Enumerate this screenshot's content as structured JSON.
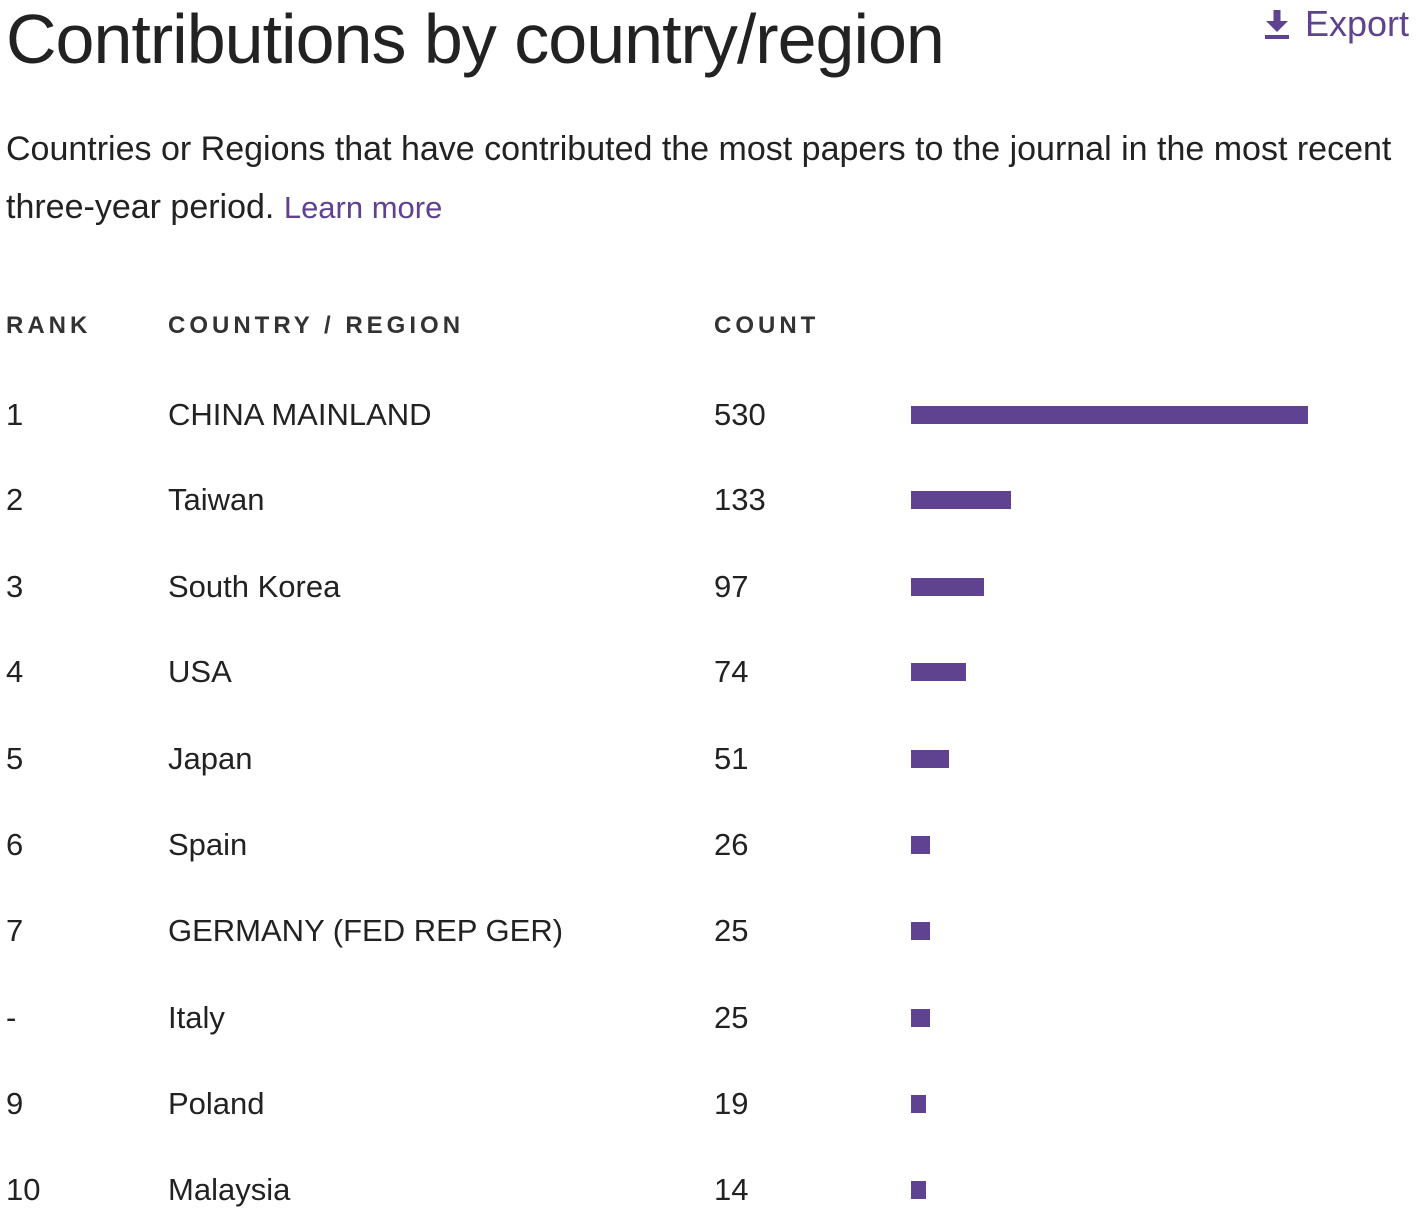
{
  "header": {
    "title": "Contributions by country/region",
    "export_label": "Export",
    "export_icon": "download-icon"
  },
  "description": {
    "text": "Countries or Regions that have contributed the most papers to the journal in the most recent three-year period.",
    "learn_more": "Learn more"
  },
  "table": {
    "columns": {
      "rank": "RANK",
      "country": "COUNTRY / REGION",
      "count": "COUNT"
    },
    "max_count": 530,
    "bar_color": "#5f4290",
    "rows": [
      {
        "rank": "1",
        "country": "CHINA MAINLAND",
        "count": "530",
        "value": 530
      },
      {
        "rank": "2",
        "country": "Taiwan",
        "count": "133",
        "value": 133
      },
      {
        "rank": "3",
        "country": "South Korea",
        "count": "97",
        "value": 97
      },
      {
        "rank": "4",
        "country": "USA",
        "count": "74",
        "value": 74
      },
      {
        "rank": "5",
        "country": "Japan",
        "count": "51",
        "value": 51
      },
      {
        "rank": "6",
        "country": "Spain",
        "count": "26",
        "value": 26
      },
      {
        "rank": "7",
        "country": "GERMANY (FED REP GER)",
        "count": "25",
        "value": 25
      },
      {
        "rank": "-",
        "country": "Italy",
        "count": "25",
        "value": 25
      },
      {
        "rank": "9",
        "country": "Poland",
        "count": "19",
        "value": 19
      },
      {
        "rank": "10",
        "country": "Malaysia",
        "count": "14",
        "value": 14
      }
    ]
  }
}
